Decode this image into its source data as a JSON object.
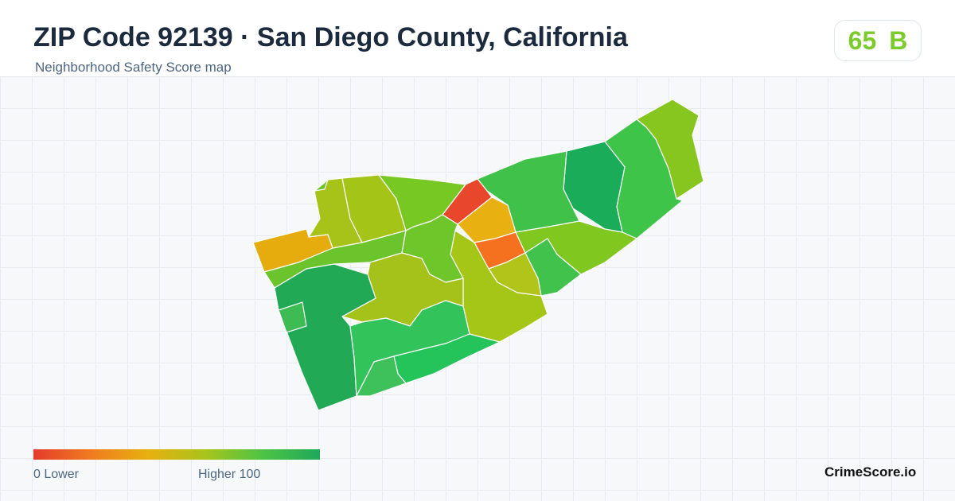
{
  "header": {
    "title": "ZIP Code 92139 · San Diego County, California",
    "subtitle": "Neighborhood Safety Score map"
  },
  "score": {
    "value": "65",
    "grade": "B",
    "color": "#7ccb2c"
  },
  "legend": {
    "min_label": "0  Lower",
    "max_label": "Higher  100",
    "gradient": [
      "#e53b2b",
      "#f07b20",
      "#e8b010",
      "#a8c41a",
      "#4dc444",
      "#1ea85a"
    ]
  },
  "brand": "CrimeScore.io",
  "regions": [
    {
      "id": "northeast-tip",
      "color": "#86c61e"
    },
    {
      "id": "northeast-strip",
      "color": "#3fc44a"
    },
    {
      "id": "north-dark-green",
      "color": "#1aac58"
    },
    {
      "id": "north-central",
      "color": "#40c14a"
    },
    {
      "id": "central-red",
      "color": "#e8472b"
    },
    {
      "id": "central-orange",
      "color": "#e8b010"
    },
    {
      "id": "central-deep-orange",
      "color": "#f5711f"
    },
    {
      "id": "east-band-lime",
      "color": "#80c820"
    },
    {
      "id": "east-green",
      "color": "#40c24c"
    },
    {
      "id": "east-olive",
      "color": "#b0c41a"
    },
    {
      "id": "central-olive",
      "color": "#a5c617"
    },
    {
      "id": "northwest-olive-a",
      "color": "#a7c218"
    },
    {
      "id": "northwest-olive-b",
      "color": "#a4c418"
    },
    {
      "id": "north-lime",
      "color": "#78c824"
    },
    {
      "id": "west-amber",
      "color": "#e6ab0c"
    },
    {
      "id": "west-lime-strip",
      "color": "#6cc42c"
    },
    {
      "id": "central-green",
      "color": "#6ec62a"
    },
    {
      "id": "central-yellowgreen",
      "color": "#a4c21a"
    },
    {
      "id": "southwest-green",
      "color": "#22a955"
    },
    {
      "id": "south-green-a",
      "color": "#32c45a"
    },
    {
      "id": "south-green-b",
      "color": "#24c45a"
    },
    {
      "id": "south-green-c",
      "color": "#3ec05a"
    },
    {
      "id": "southwest-small",
      "color": "#3cbc52"
    }
  ]
}
